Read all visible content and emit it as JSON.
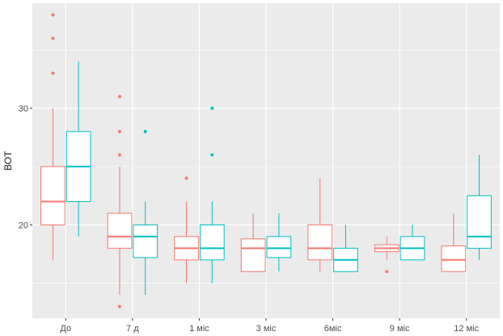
{
  "chart_data": {
    "type": "box",
    "title": "",
    "xlabel": "",
    "ylabel": "ВОТ",
    "ylim": [
      12,
      39
    ],
    "yticks": [
      20,
      30
    ],
    "grid": true,
    "legend": "none",
    "categories": [
      "До",
      "7 д",
      "1 міс",
      "3 міс",
      "6міс",
      "9 міс",
      "12 міс"
    ],
    "series": [
      {
        "color": "#F8766D",
        "boxes": [
          {
            "whisker_low": 17,
            "q1": 20,
            "median": 22,
            "q3": 25,
            "whisker_high": 30,
            "outliers": [
              33,
              36,
              38
            ]
          },
          {
            "whisker_low": 14,
            "q1": 18,
            "median": 19,
            "q3": 21,
            "whisker_high": 25,
            "outliers": [
              13,
              26,
              28,
              31
            ]
          },
          {
            "whisker_low": 15,
            "q1": 17,
            "median": 18,
            "q3": 19,
            "whisker_high": 22,
            "outliers": [
              24
            ]
          },
          {
            "whisker_low": 16,
            "q1": 16,
            "median": 18,
            "q3": 18.8,
            "whisker_high": 21,
            "outliers": []
          },
          {
            "whisker_low": 16,
            "q1": 17,
            "median": 18,
            "q3": 20,
            "whisker_high": 24,
            "outliers": []
          },
          {
            "whisker_low": 17,
            "q1": 17.7,
            "median": 18,
            "q3": 18.3,
            "whisker_high": 19,
            "outliers": [
              16
            ]
          },
          {
            "whisker_low": 16,
            "q1": 16,
            "median": 17,
            "q3": 18.2,
            "whisker_high": 21,
            "outliers": []
          }
        ]
      },
      {
        "color": "#00BFC4",
        "boxes": [
          {
            "whisker_low": 19,
            "q1": 22,
            "median": 25,
            "q3": 28,
            "whisker_high": 34,
            "outliers": []
          },
          {
            "whisker_low": 14,
            "q1": 17.2,
            "median": 19,
            "q3": 20,
            "whisker_high": 22,
            "outliers": [
              28
            ]
          },
          {
            "whisker_low": 15,
            "q1": 17,
            "median": 18,
            "q3": 20,
            "whisker_high": 22,
            "outliers": [
              26,
              30
            ]
          },
          {
            "whisker_low": 16,
            "q1": 17.2,
            "median": 18,
            "q3": 19,
            "whisker_high": 21,
            "outliers": []
          },
          {
            "whisker_low": 16,
            "q1": 16,
            "median": 17,
            "q3": 18,
            "whisker_high": 20,
            "outliers": []
          },
          {
            "whisker_low": 17,
            "q1": 17,
            "median": 18,
            "q3": 19,
            "whisker_high": 20,
            "outliers": []
          },
          {
            "whisker_low": 17,
            "q1": 18,
            "median": 19,
            "q3": 22.5,
            "whisker_high": 26,
            "outliers": []
          }
        ]
      }
    ]
  }
}
